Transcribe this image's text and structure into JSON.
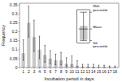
{
  "chart_data": {
    "type": "bar",
    "xlabel": "Incubation period in days",
    "ylabel": "Frequency",
    "x": [
      1,
      2,
      3,
      4,
      5,
      6,
      7,
      8,
      9,
      10,
      11,
      12,
      13,
      14,
      15,
      16,
      17,
      18
    ],
    "values": [
      0.08,
      0.25,
      0.17,
      0.1,
      0.07,
      0.05,
      0.04,
      0.04,
      0.02,
      0.02,
      0.01,
      0.005,
      0.005,
      0.005,
      0.003,
      0.003,
      0.002,
      0.002
    ],
    "ci_low": [
      0.04,
      0.17,
      0.09,
      0.05,
      0.03,
      0.02,
      0.015,
      0.015,
      0.008,
      0.008,
      0.004,
      0.001,
      0.001,
      0.001,
      0.001,
      0.001,
      0.001,
      0.001
    ],
    "ci_high": [
      0.155,
      0.345,
      0.265,
      0.175,
      0.125,
      0.095,
      0.075,
      0.085,
      0.055,
      0.065,
      0.038,
      0.018,
      0.018,
      0.018,
      0.013,
      0.013,
      0.009,
      0.009
    ],
    "color": "#c8c8c8",
    "xlim": [
      0.3,
      18.7
    ],
    "xticks": [
      1,
      2,
      3,
      4,
      5,
      6,
      7,
      8,
      9,
      10,
      11,
      12,
      13,
      14,
      15,
      16,
      17,
      18
    ],
    "ylim": [
      0,
      0.36
    ],
    "yticks": [
      0,
      0.05,
      0.1,
      0.15,
      0.2,
      0.25,
      0.3,
      0.35
    ],
    "annotations": [
      "95th\npercentile",
      "Mean",
      "5th\npercentile"
    ]
  }
}
